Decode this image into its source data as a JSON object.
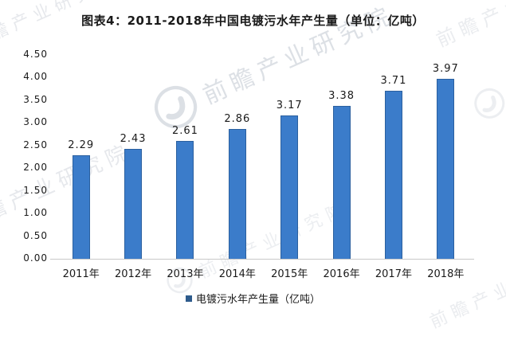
{
  "chart_data": {
    "type": "bar",
    "title": "图表4：2011-2018年中国电镀污水年产生量（单位：亿吨）",
    "categories": [
      "2011年",
      "2012年",
      "2013年",
      "2014年",
      "2015年",
      "2016年",
      "2017年",
      "2018年"
    ],
    "values": [
      2.29,
      2.43,
      2.61,
      2.86,
      3.17,
      3.38,
      3.71,
      3.97
    ],
    "data_labels": [
      "2.29",
      "2.43",
      "2.61",
      "2.86",
      "3.17",
      "3.38",
      "3.71",
      "3.97"
    ],
    "y_ticks": [
      "4.50",
      "4.00",
      "3.50",
      "3.00",
      "2.50",
      "2.00",
      "1.50",
      "1.00",
      "0.50",
      "0.00"
    ],
    "ylim": [
      0,
      4.5
    ],
    "y_tick_step": 0.5,
    "grid": false,
    "legend": {
      "label": "电镀污水年产生量（亿吨）",
      "position": "bottom"
    },
    "colors": {
      "bar_fill": "#3B7CCA",
      "bar_border": "#2B609F",
      "legend_marker": "#2E5B8C",
      "axis_line": "#C8C8C8",
      "text": "#1A1A1A"
    }
  },
  "watermark": {
    "text": "前瞻产业研究院"
  }
}
